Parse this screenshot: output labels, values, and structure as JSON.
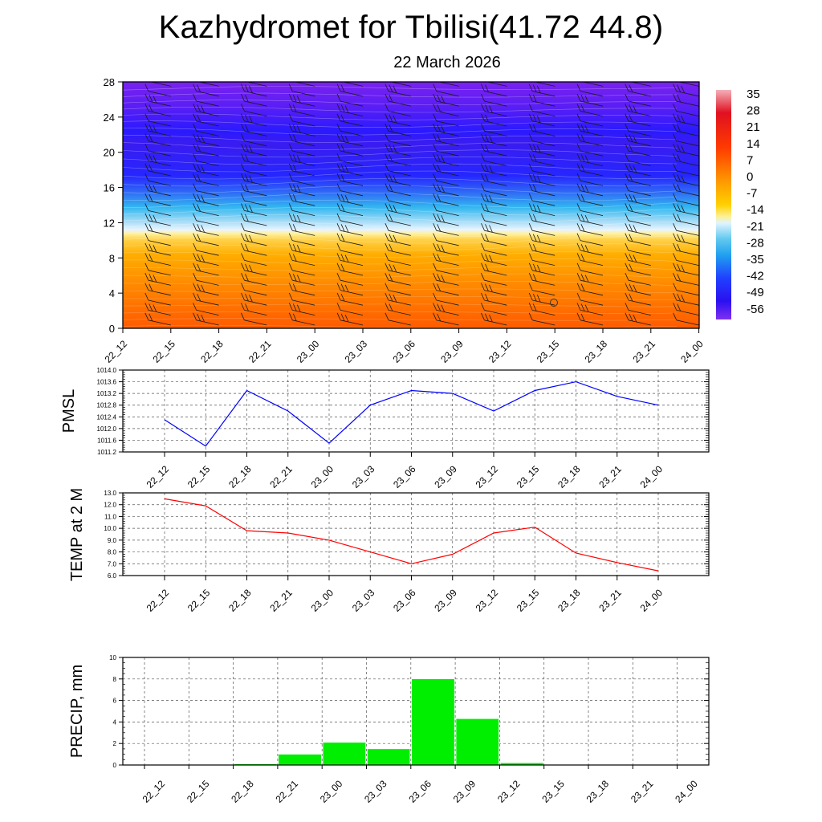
{
  "page": {
    "title": "Kazhydromet for Tbilisi(41.72 44.8)",
    "subtitle": "22 March 2026"
  },
  "time_labels": [
    "22_12",
    "22_15",
    "22_18",
    "22_21",
    "23_00",
    "23_03",
    "23_06",
    "23_09",
    "23_12",
    "23_15",
    "23_18",
    "23_21",
    "24_00"
  ],
  "chart_data": [
    {
      "type": "heatmap",
      "name": "cross-section",
      "x": [
        "22_12",
        "22_15",
        "22_18",
        "22_21",
        "23_00",
        "23_03",
        "23_06",
        "23_09",
        "23_12",
        "23_15",
        "23_18",
        "23_21",
        "24_00"
      ],
      "ylim": [
        0,
        28
      ],
      "yticks": [
        0,
        4,
        8,
        12,
        16,
        20,
        24,
        28
      ],
      "colorbar_labels": [
        "35",
        "28",
        "21",
        "14",
        "7",
        "0",
        "-7",
        "-14",
        "-21",
        "-28",
        "-35",
        "-42",
        "-49",
        "-56"
      ],
      "colors": {
        "warm_bottom": "#ff5a00",
        "warm_mid": "#ffb000",
        "yellow": "#ffe34a",
        "cyan": "#33c6f0",
        "blue": "#2020ff",
        "purple": "#7a1cf2"
      }
    },
    {
      "type": "line",
      "name": "pmsl",
      "ylabel": "PMSL",
      "ylim": [
        1011.2,
        1014.0
      ],
      "yticks": [
        "1011.2",
        "1011.6",
        "1012.0",
        "1012.4",
        "1012.8",
        "1013.2",
        "1013.6",
        "1014.0"
      ],
      "x": [
        "22_12",
        "22_15",
        "22_18",
        "22_21",
        "23_00",
        "23_03",
        "23_06",
        "23_09",
        "23_12",
        "23_15",
        "23_18",
        "23_21",
        "24_00"
      ],
      "values": [
        1012.3,
        1011.4,
        1013.3,
        1012.6,
        1011.5,
        1012.8,
        1013.3,
        1013.2,
        1012.6,
        1013.3,
        1013.6,
        1013.1,
        1012.8
      ],
      "color": "#0000ff"
    },
    {
      "type": "line",
      "name": "temp2m",
      "ylabel": "TEMP at 2 M",
      "ylim": [
        6.0,
        13.0
      ],
      "yticks": [
        "6.0",
        "7.0",
        "8.0",
        "9.0",
        "10.0",
        "11.0",
        "12.0",
        "13.0"
      ],
      "x": [
        "22_12",
        "22_15",
        "22_18",
        "22_21",
        "23_00",
        "23_03",
        "23_06",
        "23_09",
        "23_12",
        "23_15",
        "23_18",
        "23_21",
        "24_00"
      ],
      "values": [
        12.5,
        11.9,
        9.8,
        9.6,
        9.0,
        8.0,
        7.0,
        7.8,
        9.6,
        10.1,
        7.9,
        7.1,
        6.4
      ],
      "color": "#ff0000"
    },
    {
      "type": "bar",
      "name": "precip",
      "ylabel": "PRECIP, mm",
      "ylim": [
        0,
        10
      ],
      "yticks": [
        "0",
        "2",
        "4",
        "6",
        "8",
        "10"
      ],
      "categories": [
        "22_12",
        "22_15",
        "22_18",
        "22_21",
        "23_00",
        "23_03",
        "23_06",
        "23_09",
        "23_12",
        "23_15",
        "23_18",
        "23_21",
        "24_00"
      ],
      "values": [
        0,
        0,
        0.1,
        1.0,
        2.1,
        1.5,
        8.0,
        4.3,
        0.2,
        0,
        0,
        0,
        0
      ],
      "color": "#00ee00"
    }
  ]
}
